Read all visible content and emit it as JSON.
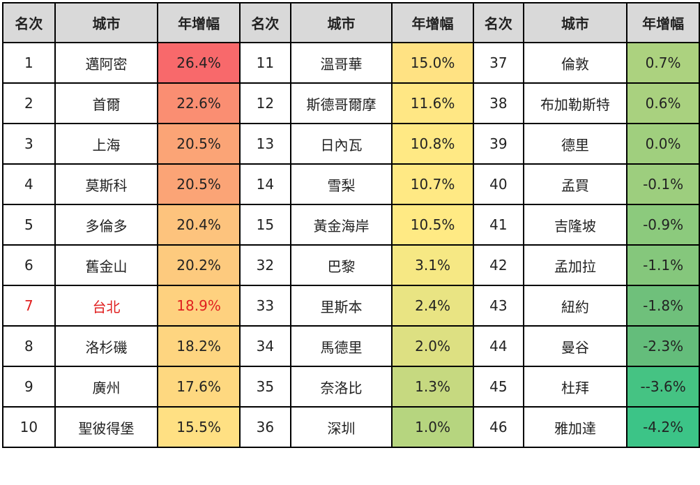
{
  "headers": [
    "名次",
    "城市",
    "年增幅",
    "名次",
    "城市",
    "年增幅",
    "名次",
    "城市",
    "年增幅"
  ],
  "highlight_color": "#e02020",
  "rows": [
    [
      {
        "rank": "1",
        "city": "邁阿密",
        "growth": "26.4%",
        "color": "#f8696b"
      },
      {
        "rank": "11",
        "city": "溫哥華",
        "growth": "15.0%",
        "color": "#ffe283"
      },
      {
        "rank": "37",
        "city": "倫敦",
        "growth": "0.7%",
        "color": "#acd27f"
      }
    ],
    [
      {
        "rank": "2",
        "city": "首爾",
        "growth": "22.6%",
        "color": "#fa8e72"
      },
      {
        "rank": "12",
        "city": "斯德哥爾摩",
        "growth": "11.6%",
        "color": "#ffe784"
      },
      {
        "rank": "38",
        "city": "布加勒斯特",
        "growth": "0.6%",
        "color": "#a9d17f"
      }
    ],
    [
      {
        "rank": "3",
        "city": "上海",
        "growth": "20.5%",
        "color": "#fba476"
      },
      {
        "rank": "13",
        "city": "日內瓦",
        "growth": "10.8%",
        "color": "#ffe984"
      },
      {
        "rank": "39",
        "city": "德里",
        "growth": "0.0%",
        "color": "#a0cf7e"
      }
    ],
    [
      {
        "rank": "4",
        "city": "莫斯科",
        "growth": "20.5%",
        "color": "#fba476"
      },
      {
        "rank": "14",
        "city": "雪梨",
        "growth": "10.7%",
        "color": "#ffe984"
      },
      {
        "rank": "40",
        "city": "孟買",
        "growth": "-0.1%",
        "color": "#9dce7e"
      }
    ],
    [
      {
        "rank": "5",
        "city": "多倫多",
        "growth": "20.4%",
        "color": "#fdc37d"
      },
      {
        "rank": "15",
        "city": "黃金海岸",
        "growth": "10.5%",
        "color": "#ffea84"
      },
      {
        "rank": "41",
        "city": "吉隆坡",
        "growth": "-0.9%",
        "color": "#8cca7d"
      }
    ],
    [
      {
        "rank": "6",
        "city": "舊金山",
        "growth": "20.2%",
        "color": "#fdca7e"
      },
      {
        "rank": "32",
        "city": "巴黎",
        "growth": "3.1%",
        "color": "#f6e884"
      },
      {
        "rank": "42",
        "city": "孟加拉",
        "growth": "-1.1%",
        "color": "#85c77c"
      }
    ],
    [
      {
        "rank": "7",
        "city": "台北",
        "growth": "18.9%",
        "color": "#fed17f",
        "highlight": true
      },
      {
        "rank": "33",
        "city": "里斯本",
        "growth": "2.4%",
        "color": "#e9e483"
      },
      {
        "rank": "43",
        "city": "紐約",
        "growth": "-1.8%",
        "color": "#6fc07b"
      }
    ],
    [
      {
        "rank": "8",
        "city": "洛杉磯",
        "growth": "18.2%",
        "color": "#fed580"
      },
      {
        "rank": "34",
        "city": "馬德里",
        "growth": "2.0%",
        "color": "#dde082"
      },
      {
        "rank": "44",
        "city": "曼谷",
        "growth": "-2.3%",
        "color": "#64bd7b"
      }
    ],
    [
      {
        "rank": "9",
        "city": "廣州",
        "growth": "17.6%",
        "color": "#fed880"
      },
      {
        "rank": "35",
        "city": "奈洛比",
        "growth": "1.3%",
        "color": "#c6d980"
      },
      {
        "rank": "45",
        "city": "杜拜",
        "growth": "--3.6%",
        "color": "#45c383"
      }
    ],
    [
      {
        "rank": "10",
        "city": "聖彼得堡",
        "growth": "15.5%",
        "color": "#ffe083"
      },
      {
        "rank": "36",
        "city": "深圳",
        "growth": "1.0%",
        "color": "#b6d57f"
      },
      {
        "rank": "46",
        "city": "雅加達",
        "growth": "-4.2%",
        "color": "#3cc487"
      }
    ]
  ]
}
